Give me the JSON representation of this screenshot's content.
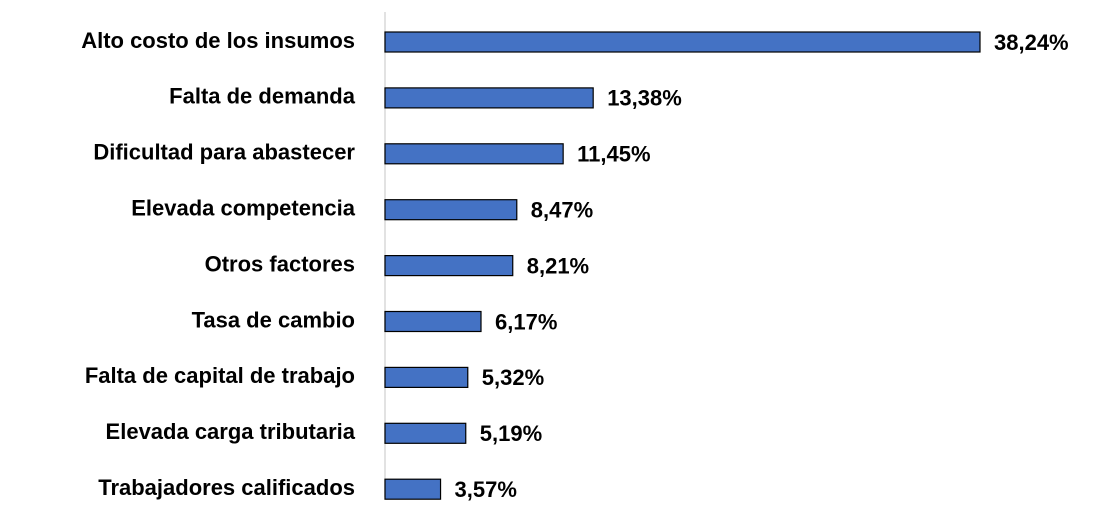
{
  "chart_data": {
    "type": "bar",
    "orientation": "horizontal",
    "color": "#4472c4",
    "categories": [
      "Alto costo de los insumos",
      "Falta de demanda",
      "Dificultad para abastecer",
      "Elevada competencia",
      "Otros factores",
      "Tasa de cambio",
      "Falta de capital de trabajo",
      "Elevada carga tributaria",
      "Trabajadores calificados"
    ],
    "values": [
      38.24,
      13.38,
      11.45,
      8.47,
      8.21,
      6.17,
      5.32,
      5.19,
      3.57
    ],
    "value_labels": [
      "38,24%",
      "13,38%",
      "11,45%",
      "8,47%",
      "8,21%",
      "6,17%",
      "5,32%",
      "5,19%",
      "3,57%"
    ]
  }
}
